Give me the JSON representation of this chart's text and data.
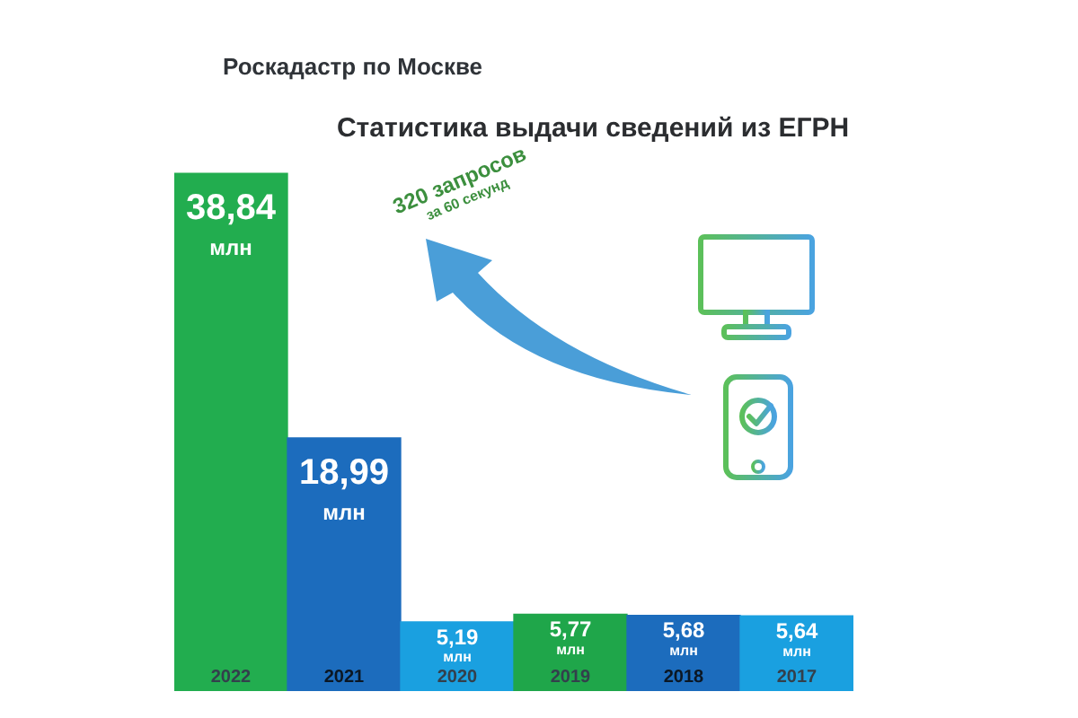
{
  "chart_data": {
    "type": "bar",
    "title": "Статистика выдачи сведений из ЕГРН",
    "categories": [
      "2022",
      "2021",
      "2020",
      "2019",
      "2018",
      "2017"
    ],
    "values": [
      38.84,
      18.99,
      5.19,
      5.77,
      5.68,
      5.64
    ],
    "colors": [
      "#22ad4f",
      "#1c6cbd",
      "#1aa0e0",
      "#1fa64a",
      "#1c6cbd",
      "#1aa0e0"
    ],
    "value_labels": [
      "38,84\nмлн",
      "18,99\nмлн",
      "5,19\nмлн",
      "5,77\nмлн",
      "5,68\nмлн",
      "5,64\nмлн"
    ],
    "annotations": [
      "Роскадастр по Москве",
      "320 запросов\nза 60 секунд"
    ],
    "tick_labels": "x"
  }
}
